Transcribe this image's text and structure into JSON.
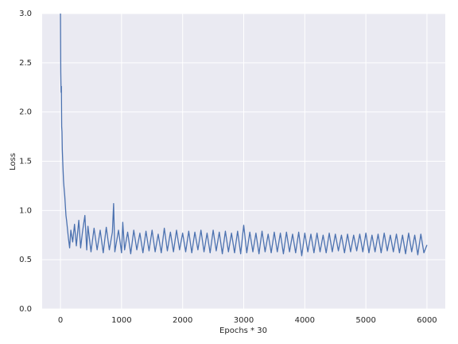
{
  "chart_data": {
    "type": "line",
    "xlabel": "Epochs * 30",
    "ylabel": "Loss",
    "color": "#4c72b0",
    "grid": true,
    "background": "#eaeaf2",
    "xlim": [
      -300,
      6300
    ],
    "ylim": [
      0,
      3
    ],
    "xticks": [
      0,
      1000,
      2000,
      3000,
      4000,
      5000,
      6000
    ],
    "yticks": [
      {
        "value": 0,
        "label": "0.0"
      },
      0.5,
      {
        "value": 1,
        "label": "1.0"
      },
      1.5,
      {
        "value": 2,
        "label": "2.0"
      },
      2.5,
      {
        "value": 3,
        "label": "3.0"
      }
    ],
    "x": [
      0,
      5,
      10,
      15,
      20,
      25,
      30,
      40,
      50,
      60,
      70,
      80,
      90,
      100,
      110,
      120,
      130,
      150,
      170,
      200,
      230,
      260,
      300,
      330,
      360,
      400,
      430,
      450,
      500,
      550,
      600,
      650,
      700,
      750,
      800,
      850,
      870,
      890,
      950,
      1000,
      1020,
      1050,
      1100,
      1150,
      1200,
      1250,
      1300,
      1350,
      1400,
      1450,
      1500,
      1550,
      1600,
      1650,
      1700,
      1750,
      1800,
      1850,
      1900,
      1950,
      2000,
      2050,
      2100,
      2150,
      2200,
      2250,
      2300,
      2350,
      2400,
      2450,
      2500,
      2550,
      2600,
      2650,
      2700,
      2750,
      2800,
      2850,
      2900,
      2950,
      3000,
      3050,
      3100,
      3150,
      3200,
      3250,
      3300,
      3350,
      3400,
      3450,
      3500,
      3550,
      3600,
      3650,
      3700,
      3750,
      3800,
      3850,
      3900,
      3950,
      4000,
      4050,
      4100,
      4150,
      4200,
      4250,
      4300,
      4350,
      4400,
      4450,
      4500,
      4550,
      4600,
      4650,
      4700,
      4750,
      4800,
      4850,
      4900,
      4950,
      5000,
      5050,
      5100,
      5150,
      5200,
      5250,
      5300,
      5350,
      5400,
      5450,
      5500,
      5550,
      5600,
      5650,
      5700,
      5750,
      5800,
      5850,
      5900,
      5950,
      6000
    ],
    "values": [
      3.0,
      2.4,
      2.2,
      2.26,
      1.85,
      1.8,
      1.62,
      1.45,
      1.3,
      1.22,
      1.15,
      1.05,
      0.95,
      0.9,
      0.84,
      0.78,
      0.72,
      0.62,
      0.8,
      0.68,
      0.86,
      0.64,
      0.9,
      0.62,
      0.78,
      0.95,
      0.6,
      0.84,
      0.58,
      0.82,
      0.6,
      0.8,
      0.57,
      0.83,
      0.6,
      0.78,
      1.07,
      0.58,
      0.8,
      0.57,
      0.88,
      0.6,
      0.78,
      0.56,
      0.8,
      0.6,
      0.77,
      0.57,
      0.79,
      0.59,
      0.8,
      0.58,
      0.76,
      0.57,
      0.82,
      0.59,
      0.78,
      0.58,
      0.8,
      0.6,
      0.77,
      0.58,
      0.79,
      0.57,
      0.78,
      0.6,
      0.8,
      0.58,
      0.77,
      0.57,
      0.8,
      0.59,
      0.78,
      0.56,
      0.79,
      0.58,
      0.77,
      0.57,
      0.79,
      0.56,
      0.85,
      0.57,
      0.78,
      0.58,
      0.77,
      0.56,
      0.79,
      0.58,
      0.76,
      0.57,
      0.78,
      0.58,
      0.77,
      0.56,
      0.78,
      0.58,
      0.76,
      0.57,
      0.78,
      0.54,
      0.77,
      0.58,
      0.76,
      0.57,
      0.77,
      0.58,
      0.75,
      0.57,
      0.77,
      0.58,
      0.76,
      0.59,
      0.75,
      0.57,
      0.76,
      0.58,
      0.75,
      0.59,
      0.76,
      0.58,
      0.77,
      0.57,
      0.75,
      0.58,
      0.76,
      0.57,
      0.77,
      0.59,
      0.75,
      0.58,
      0.76,
      0.57,
      0.75,
      0.56,
      0.77,
      0.58,
      0.75,
      0.55,
      0.76,
      0.57,
      0.65
    ]
  }
}
